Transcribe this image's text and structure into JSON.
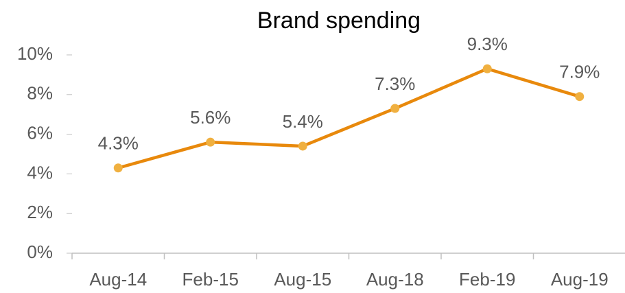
{
  "chart_data": {
    "type": "line",
    "title": "Brand spending",
    "categories": [
      "Aug-14",
      "Feb-15",
      "Aug-15",
      "Aug-18",
      "Feb-19",
      "Aug-19"
    ],
    "values": [
      4.3,
      5.6,
      5.4,
      7.3,
      9.3,
      7.9
    ],
    "value_labels": [
      "4.3%",
      "5.6%",
      "5.4%",
      "7.3%",
      "9.3%",
      "7.9%"
    ],
    "color": "#e8890c",
    "marker_color": "#f0b040",
    "ylim": [
      0,
      10
    ],
    "yticks": [
      {
        "value": 0,
        "label": "0%"
      },
      {
        "value": 2,
        "label": "2%"
      },
      {
        "value": 4,
        "label": "4%"
      },
      {
        "value": 6,
        "label": "6%"
      },
      {
        "value": 8,
        "label": "8%"
      },
      {
        "value": 10,
        "label": "10%"
      }
    ],
    "grid": false
  }
}
